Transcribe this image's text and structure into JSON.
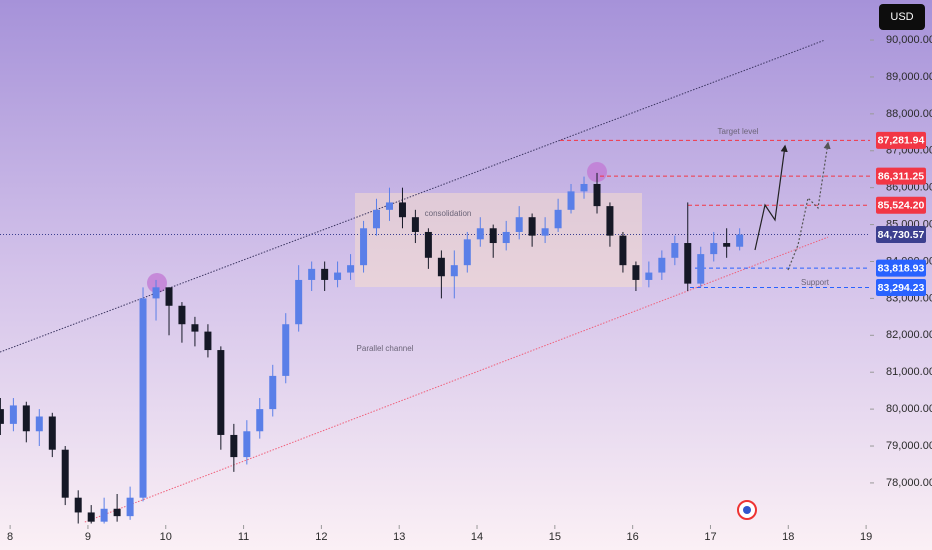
{
  "chart_data": {
    "type": "candlestick",
    "currency": "USD",
    "x": [
      7.875,
      8.042,
      8.208,
      8.375,
      8.542,
      8.708,
      8.875,
      9.042,
      9.208,
      9.375,
      9.542,
      9.708,
      9.875,
      10.042,
      10.208,
      10.375,
      10.542,
      10.708,
      10.875,
      11.042,
      11.208,
      11.375,
      11.542,
      11.708,
      11.875,
      12.042,
      12.208,
      12.375,
      12.542,
      12.708,
      12.875,
      13.042,
      13.208,
      13.375,
      13.542,
      13.708,
      13.875,
      14.042,
      14.208,
      14.375,
      14.542,
      14.708,
      14.875,
      15.042,
      15.208,
      15.375,
      15.542,
      15.708,
      15.875,
      16.042,
      16.208,
      16.375,
      16.542,
      16.708,
      16.875,
      17.042,
      17.208,
      17.375
    ],
    "open": [
      80000,
      79600,
      80100,
      79400,
      79800,
      78900,
      77600,
      77200,
      76950,
      77300,
      77100,
      77600,
      83000,
      83300,
      82800,
      82300,
      82100,
      81600,
      79300,
      78700,
      79400,
      80000,
      80900,
      82300,
      83500,
      83800,
      83500,
      83700,
      83900,
      84900,
      85400,
      85600,
      85200,
      84800,
      84100,
      83600,
      83900,
      84600,
      84900,
      84500,
      84800,
      85200,
      84700,
      84900,
      85400,
      85900,
      86100,
      85500,
      84700,
      83900,
      83500,
      83700,
      84100,
      84500,
      83400,
      84200,
      84500,
      84400
    ],
    "high": [
      80300,
      80300,
      80200,
      80000,
      79900,
      79000,
      77800,
      77400,
      77600,
      77700,
      77900,
      83300,
      83500,
      83300,
      82900,
      82500,
      82300,
      81700,
      79600,
      79700,
      80300,
      81200,
      82600,
      83900,
      84000,
      84000,
      84000,
      84200,
      85100,
      85700,
      86000,
      86000,
      85400,
      84900,
      84300,
      84300,
      84800,
      85200,
      85000,
      85100,
      85500,
      85300,
      85200,
      85700,
      86100,
      86300,
      86400,
      85600,
      84800,
      84000,
      84000,
      84300,
      84700,
      85600,
      84400,
      84800,
      84900,
      84900
    ],
    "low": [
      79300,
      79400,
      79100,
      79000,
      78700,
      77400,
      76900,
      76900,
      76900,
      76950,
      77000,
      77500,
      82400,
      82000,
      81800,
      81700,
      81400,
      78900,
      78300,
      78500,
      79200,
      79800,
      80700,
      82100,
      83200,
      83200,
      83300,
      83500,
      83700,
      84700,
      85100,
      84900,
      84500,
      83800,
      83000,
      83000,
      83700,
      84400,
      84100,
      84300,
      84600,
      84400,
      84500,
      84800,
      85300,
      85700,
      85300,
      84400,
      83700,
      83200,
      83300,
      83500,
      83900,
      83200,
      83300,
      84000,
      84100,
      84300
    ],
    "close": [
      79600,
      80100,
      79400,
      79800,
      78900,
      77600,
      77200,
      76950,
      77300,
      77100,
      77600,
      83000,
      83300,
      82800,
      82300,
      82100,
      81600,
      79300,
      78700,
      79400,
      80000,
      80900,
      82300,
      83500,
      83800,
      83500,
      83700,
      83900,
      84900,
      85400,
      85600,
      85200,
      84800,
      84100,
      83600,
      83900,
      84600,
      84900,
      84500,
      84800,
      85200,
      84700,
      84900,
      85400,
      85900,
      86100,
      85500,
      84700,
      83900,
      83500,
      83700,
      84100,
      84500,
      83400,
      84200,
      84500,
      84400,
      84730
    ],
    "up_color": "#5a7fe8",
    "down_color": "#151826",
    "xlim": [
      7.87,
      19.05
    ],
    "xticks": [
      8,
      9,
      10,
      11,
      12,
      13,
      14,
      15,
      16,
      17,
      18,
      19
    ],
    "ylim": [
      76860,
      91085
    ],
    "yticks": [
      {
        "value": 78000,
        "label": "78,000.00"
      },
      {
        "value": 79000,
        "label": "79,000.00"
      },
      {
        "value": 80000,
        "label": "80,000.00"
      },
      {
        "value": 81000,
        "label": "81,000.00"
      },
      {
        "value": 82000,
        "label": "82,000.00"
      },
      {
        "value": 83000,
        "label": "83,000.00"
      },
      {
        "value": 84000,
        "label": "84,000.00"
      },
      {
        "value": 85000,
        "label": "85,000.00"
      },
      {
        "value": 86000,
        "label": "86,000.00"
      },
      {
        "value": 87000,
        "label": "87,000.00"
      },
      {
        "value": 88000,
        "label": "88,000.00"
      },
      {
        "value": 89000,
        "label": "89,000.00"
      },
      {
        "value": 90000,
        "label": "90,000.00"
      }
    ],
    "price_levels": [
      {
        "value": 87281.94,
        "label": "87,281.94"
      },
      {
        "value": 86311.25,
        "label": "86,311.25"
      },
      {
        "value": 85524.2,
        "label": "85,524.20"
      },
      {
        "value": 84730.57,
        "label": "84,730.57"
      },
      {
        "value": 83818.93,
        "label": "83,818.93"
      },
      {
        "value": 83294.23,
        "label": "83,294.23"
      }
    ],
    "price_level_colors": [
      "#f23645",
      "#f23645",
      "#f23645",
      "#3c3f8f",
      "#2962ff",
      "#2962ff"
    ],
    "trendlines": [
      {
        "x": [
          7.87,
          18.47
        ],
        "y": [
          81545,
          90000
        ],
        "color": "#3b3560"
      },
      {
        "x": [
          8.96,
          18.51
        ],
        "y": [
          76940,
          84660
        ],
        "color": "#f0607a"
      }
    ],
    "annotations": [
      "consolidation",
      "Parallel channel",
      "Target level",
      "Support"
    ]
  }
}
